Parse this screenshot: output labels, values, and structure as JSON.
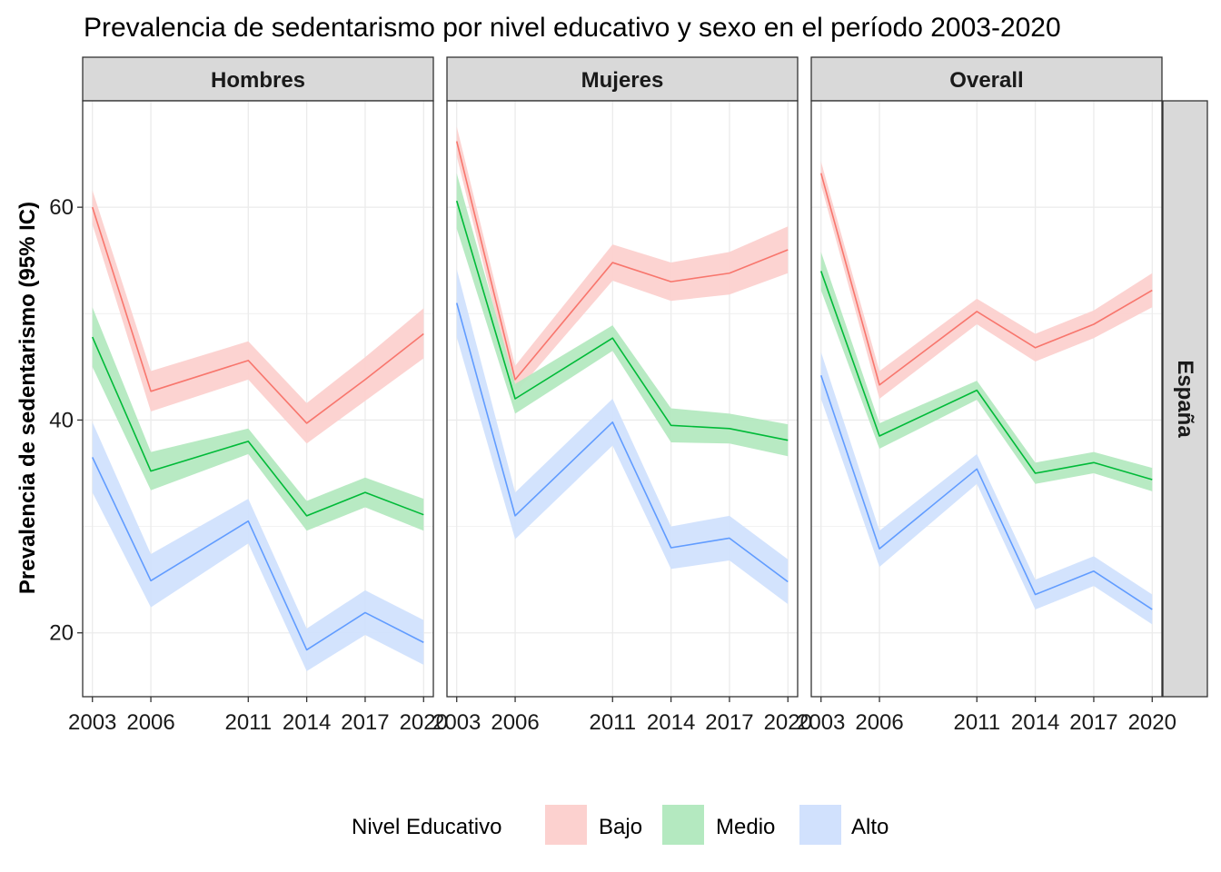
{
  "chart_data": {
    "type": "line",
    "title": "Prevalencia de sedentarismo por nivel educativo y sexo en el período 2003-2020",
    "xlabel": "",
    "ylabel": "Prevalencia de sedentarismo (95% IC)",
    "row_label": "España",
    "x": [
      2003,
      2006,
      2011,
      2014,
      2017,
      2020
    ],
    "xlim": [
      2002.5,
      2020.5
    ],
    "ylim": [
      14,
      70
    ],
    "yticks": [
      20,
      40,
      60
    ],
    "grid": true,
    "legend": {
      "position": "bottom",
      "title": "Nivel Educativo",
      "entries": [
        "Bajo",
        "Medio",
        "Alto"
      ]
    },
    "colors": {
      "Bajo": {
        "line": "#f8766d",
        "fill": "#fcd1cf"
      },
      "Medio": {
        "line": "#00ba38",
        "fill": "#b4e9c0"
      },
      "Alto": {
        "line": "#619cff",
        "fill": "#d1e1fd"
      }
    },
    "panels": [
      {
        "name": "Hombres",
        "series": [
          {
            "name": "Bajo",
            "values": [
              60.0,
              42.7,
              45.6,
              39.7,
              43.8,
              48.1
            ],
            "lower": [
              58.4,
              40.8,
              43.8,
              37.8,
              41.8,
              45.8
            ],
            "upper": [
              61.6,
              44.6,
              47.4,
              41.6,
              45.9,
              50.5
            ]
          },
          {
            "name": "Medio",
            "values": [
              47.8,
              35.2,
              38.0,
              31.0,
              33.2,
              31.1
            ],
            "lower": [
              45.0,
              33.4,
              36.8,
              29.6,
              31.8,
              29.6
            ],
            "upper": [
              50.6,
              37.0,
              39.2,
              32.4,
              34.6,
              32.6
            ]
          },
          {
            "name": "Alto",
            "values": [
              36.5,
              24.9,
              30.5,
              18.4,
              21.9,
              19.1
            ],
            "lower": [
              33.2,
              22.4,
              28.4,
              16.4,
              19.8,
              17.0
            ],
            "upper": [
              39.8,
              27.4,
              32.6,
              20.4,
              24.0,
              21.2
            ]
          }
        ]
      },
      {
        "name": "Mujeres",
        "series": [
          {
            "name": "Bajo",
            "values": [
              66.2,
              43.8,
              54.8,
              53.0,
              53.8,
              56.0
            ],
            "lower": [
              64.8,
              42.5,
              53.1,
              51.2,
              51.8,
              53.8
            ],
            "upper": [
              67.6,
              45.1,
              56.5,
              54.8,
              55.8,
              58.2
            ]
          },
          {
            "name": "Medio",
            "values": [
              60.6,
              42.0,
              47.7,
              39.5,
              39.2,
              38.1
            ],
            "lower": [
              58.0,
              40.6,
              46.5,
              37.9,
              37.8,
              36.6
            ],
            "upper": [
              63.2,
              43.4,
              48.9,
              41.1,
              40.6,
              39.6
            ]
          },
          {
            "name": "Alto",
            "values": [
              51.0,
              31.0,
              39.8,
              28.0,
              28.9,
              24.8
            ],
            "lower": [
              47.8,
              28.8,
              37.6,
              26.0,
              26.8,
              22.7
            ],
            "upper": [
              54.2,
              33.2,
              42.0,
              30.0,
              31.0,
              26.9
            ]
          }
        ]
      },
      {
        "name": "Overall",
        "series": [
          {
            "name": "Bajo",
            "values": [
              63.2,
              43.3,
              50.2,
              46.8,
              49.0,
              52.2
            ],
            "lower": [
              62.1,
              42.0,
              49.0,
              45.5,
              47.7,
              50.6
            ],
            "upper": [
              64.3,
              44.6,
              51.4,
              48.1,
              50.3,
              53.8
            ]
          },
          {
            "name": "Medio",
            "values": [
              54.0,
              38.5,
              42.8,
              35.0,
              36.0,
              34.4
            ],
            "lower": [
              52.2,
              37.3,
              41.9,
              34.0,
              35.0,
              33.3
            ],
            "upper": [
              55.8,
              39.7,
              43.7,
              36.0,
              37.0,
              35.5
            ]
          },
          {
            "name": "Alto",
            "values": [
              44.2,
              27.9,
              35.4,
              23.6,
              25.8,
              22.2
            ],
            "lower": [
              42.0,
              26.2,
              34.0,
              22.2,
              24.4,
              20.8
            ],
            "upper": [
              46.4,
              29.6,
              36.8,
              25.0,
              27.2,
              23.6
            ]
          }
        ]
      }
    ]
  }
}
